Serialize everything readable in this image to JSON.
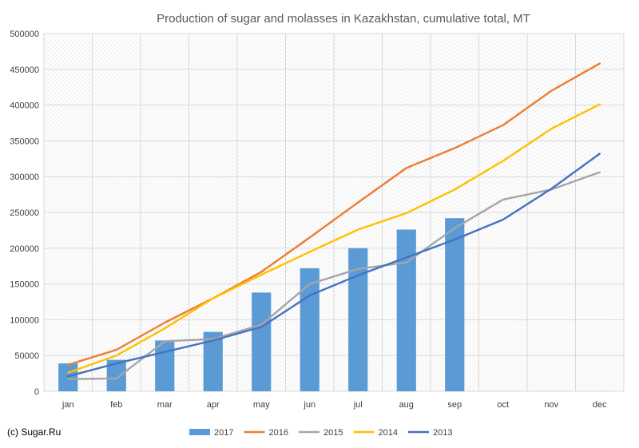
{
  "credit": "(c) Sugar.Ru",
  "chart_data": {
    "type": "bar",
    "title": "Production of sugar and molasses in Kazakhstan, cumulative total, MT",
    "xlabel": "",
    "ylabel": "",
    "categories": [
      "jan",
      "feb",
      "mar",
      "apr",
      "may",
      "jun",
      "jul",
      "aug",
      "sep",
      "oct",
      "nov",
      "dec"
    ],
    "ylim": [
      0,
      500000
    ],
    "yticks": [
      0,
      50000,
      100000,
      150000,
      200000,
      250000,
      300000,
      350000,
      400000,
      450000,
      500000
    ],
    "grid": true,
    "legend_position": "bottom",
    "series": [
      {
        "name": "2017",
        "type": "bar",
        "color": "#5B9BD5",
        "values": [
          39000,
          44000,
          71000,
          83000,
          138000,
          172000,
          200000,
          226000,
          242000,
          null,
          null,
          null
        ]
      },
      {
        "name": "2016",
        "type": "line",
        "color": "#ED7D31",
        "values": [
          37000,
          58000,
          96000,
          130000,
          167000,
          215000,
          264000,
          312000,
          340000,
          372000,
          420000,
          458000
        ]
      },
      {
        "name": "2015",
        "type": "line",
        "color": "#A5A5A5",
        "values": [
          17000,
          18000,
          70000,
          73000,
          93000,
          150000,
          171000,
          180000,
          228000,
          268000,
          282000,
          306000
        ]
      },
      {
        "name": "2014",
        "type": "line",
        "color": "#FFC000",
        "values": [
          26000,
          50000,
          88000,
          130000,
          163000,
          195000,
          226000,
          249000,
          282000,
          322000,
          367000,
          401000
        ]
      },
      {
        "name": "2013",
        "type": "line",
        "color": "#4472C4",
        "values": [
          21000,
          39000,
          55000,
          71000,
          90000,
          134000,
          162000,
          187000,
          212000,
          240000,
          283000,
          332000
        ]
      }
    ]
  }
}
